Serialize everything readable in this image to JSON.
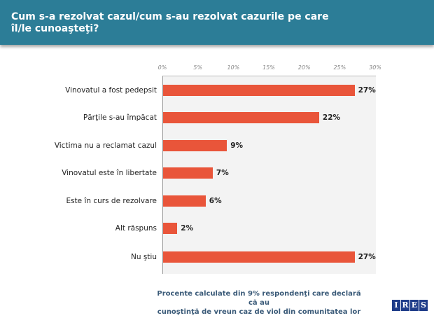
{
  "header": {
    "title": "Cum s-a rezolvat cazul/cum s-au rezolvat cazurile pe care îl/le cunoaşteţi?"
  },
  "chart_data": {
    "type": "bar",
    "orientation": "horizontal",
    "title": "Cum s-a rezolvat cazul/cum s-au rezolvat cazurile pe care îl/le cunoaşteţi?",
    "categories": [
      "Vinovatul a fost pedepsit",
      "Părţile s-au împăcat",
      "Victima nu a reclamat cazul",
      "Vinovatul este în libertate",
      "Este în curs de rezolvare",
      "Alt răspuns",
      "Nu ştiu"
    ],
    "values": [
      27,
      22,
      9,
      7,
      6,
      2,
      27
    ],
    "labels": [
      "27%",
      "22%",
      "9%",
      "7%",
      "6%",
      "2%",
      "27%"
    ],
    "xlim": [
      0,
      30
    ],
    "ticks": [
      "0%",
      "5%",
      "10%",
      "15%",
      "20%",
      "25%",
      "30%"
    ],
    "tick_position": "top",
    "bar_color": "#e9553a"
  },
  "footer": {
    "note_line1": "Procente calculate din 9% respondenţi care declară că au",
    "note_line2": "cunoştinţă de vreun caz de viol din comunitatea lor",
    "logo": "IRES"
  }
}
